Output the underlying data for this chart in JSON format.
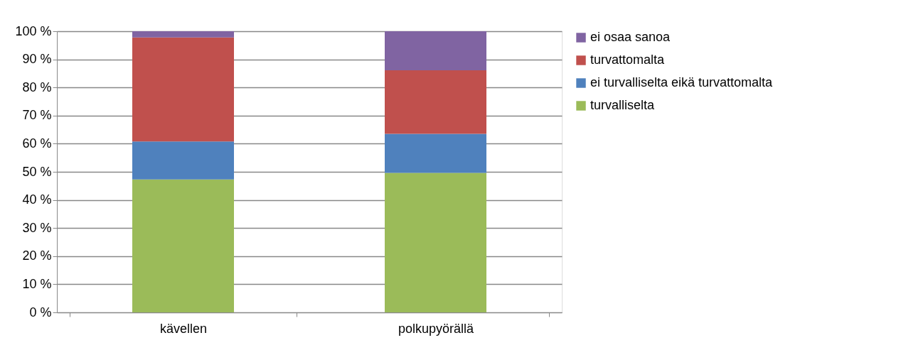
{
  "chart_data": {
    "type": "bar",
    "stacked": true,
    "categories": [
      "kävellen",
      "polkupyörällä"
    ],
    "series": [
      {
        "name": "turvalliselta",
        "color": "#9bbb59",
        "values": [
          47.3,
          49.6
        ]
      },
      {
        "name": "ei turvalliselta eikä turvattomalta",
        "color": "#4f81bd",
        "values": [
          13.5,
          13.9
        ]
      },
      {
        "name": "turvattomalta",
        "color": "#c0504d",
        "values": [
          37.0,
          22.6
        ]
      },
      {
        "name": "ei osaa sanoa",
        "color": "#8064a2",
        "values": [
          2.2,
          13.9
        ]
      }
    ],
    "ylim": [
      0,
      100
    ],
    "yticks": [
      {
        "value": 0,
        "label": "0 %"
      },
      {
        "value": 10,
        "label": "10 %"
      },
      {
        "value": 20,
        "label": "20 %"
      },
      {
        "value": 30,
        "label": "30 %"
      },
      {
        "value": 40,
        "label": "40 %"
      },
      {
        "value": 50,
        "label": "50 %"
      },
      {
        "value": 60,
        "label": "60 %"
      },
      {
        "value": 70,
        "label": "70 %"
      },
      {
        "value": 80,
        "label": "80 %"
      },
      {
        "value": 90,
        "label": "90 %"
      },
      {
        "value": 100,
        "label": "100 %"
      }
    ],
    "grid": "y",
    "legend": "right"
  }
}
